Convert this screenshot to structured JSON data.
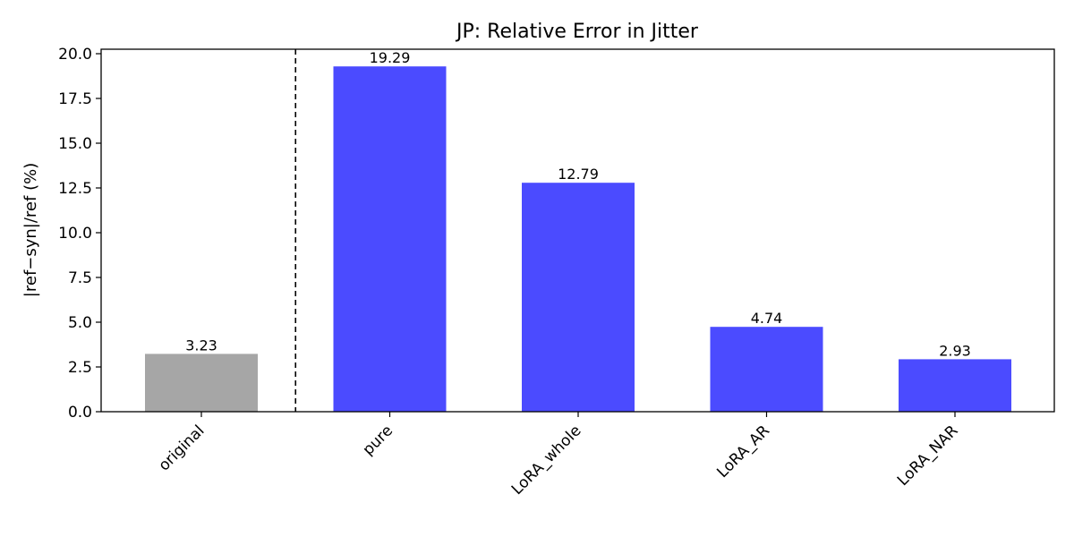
{
  "chart_data": {
    "type": "bar",
    "title": "JP: Relative Error in Jitter",
    "xlabel": "",
    "ylabel": "|ref−syn|/ref (%)",
    "categories": [
      "original",
      "pure",
      "LoRA_whole",
      "LoRA_AR",
      "LoRA_NAR"
    ],
    "values": [
      3.23,
      19.29,
      12.79,
      4.74,
      2.93
    ],
    "value_labels": [
      "3.23",
      "19.29",
      "12.79",
      "4.74",
      "2.93"
    ],
    "colors": [
      "#a6a6a6",
      "#4b4bff",
      "#4b4bff",
      "#4b4bff",
      "#4b4bff"
    ],
    "ylim": [
      0,
      20.25
    ],
    "yticks": [
      0.0,
      2.5,
      5.0,
      7.5,
      10.0,
      12.5,
      15.0,
      17.5,
      20.0
    ],
    "ytick_labels": [
      "0.0",
      "2.5",
      "5.0",
      "7.5",
      "10.0",
      "12.5",
      "15.0",
      "17.5",
      "20.0"
    ],
    "separator": "dashed vertical line between original and pure",
    "grid": false,
    "legend": "none"
  }
}
